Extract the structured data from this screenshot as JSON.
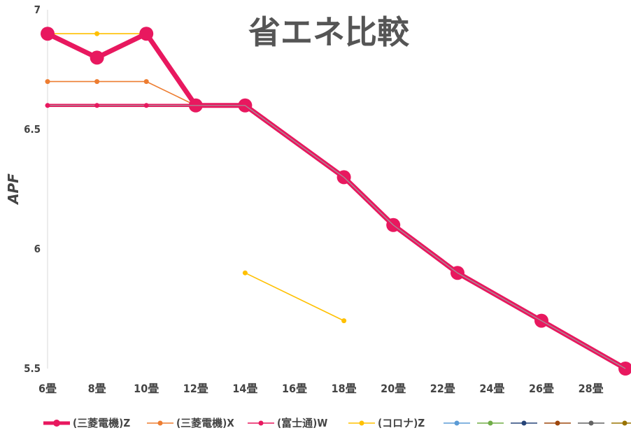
{
  "chart_data": {
    "type": "line",
    "title": "省エネ比較",
    "ylabel": "APF",
    "xlabel": "",
    "categories": [
      "6畳",
      "8畳",
      "10畳",
      "12畳",
      "14畳",
      "16畳",
      "18畳",
      "20畳",
      "22畳",
      "24畳",
      "26畳",
      "28畳"
    ],
    "yticks": [
      "7",
      "6.5",
      "6",
      "5.5"
    ],
    "ylim": [
      5.5,
      7
    ],
    "series": [
      {
        "name": "(三菱電機)Z",
        "color": "#e8185f",
        "points": [
          [
            0,
            6.9
          ],
          [
            1,
            6.8
          ],
          [
            2,
            6.9
          ],
          [
            3,
            6.6
          ],
          [
            4,
            6.6
          ],
          [
            6,
            6.3
          ],
          [
            7,
            6.1
          ],
          [
            8.3,
            5.9
          ],
          [
            10,
            5.7
          ],
          [
            11.7,
            5.5
          ]
        ]
      },
      {
        "name": "(三菱電機)X",
        "color": "#ed7d31",
        "points": [
          [
            0,
            6.7
          ],
          [
            1,
            6.7
          ],
          [
            2,
            6.7
          ],
          [
            3,
            6.6
          ]
        ]
      },
      {
        "name": "(富士通)W",
        "color": "#e8185f",
        "points": [
          [
            0,
            6.6
          ],
          [
            1,
            6.6
          ],
          [
            2,
            6.6
          ],
          [
            3,
            6.6
          ],
          [
            4,
            6.6
          ],
          [
            6,
            6.3
          ],
          [
            7,
            6.1
          ],
          [
            8.3,
            5.9
          ],
          [
            10,
            5.7
          ],
          [
            11.7,
            5.5
          ]
        ]
      },
      {
        "name": "(コロナ)Z",
        "color": "#ffc000",
        "points": [
          [
            0,
            6.9
          ],
          [
            1,
            6.9
          ],
          [
            2,
            6.9
          ],
          [
            4,
            5.9
          ],
          [
            6,
            5.7
          ]
        ]
      },
      {
        "name": "",
        "color": "#5b9bd5",
        "points": []
      },
      {
        "name": "",
        "color": "#70ad47",
        "points": []
      },
      {
        "name": "",
        "color": "#264478",
        "points": []
      },
      {
        "name": "",
        "color": "#9e480e",
        "points": []
      },
      {
        "name": "",
        "color": "#636363",
        "points": []
      },
      {
        "name": "",
        "color": "#997300",
        "points": []
      }
    ],
    "grid": false,
    "legend": "bottom"
  }
}
